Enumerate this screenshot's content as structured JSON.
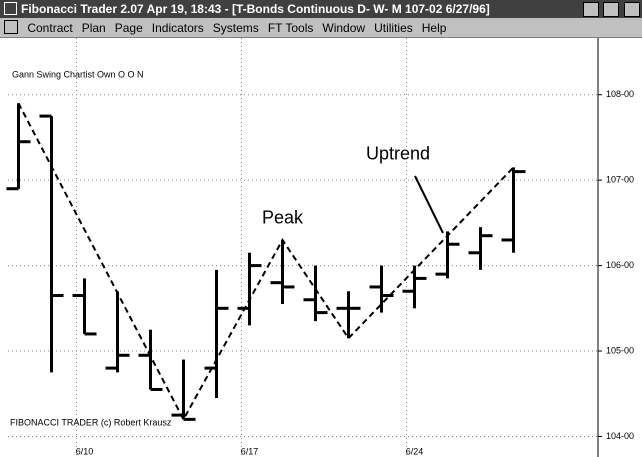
{
  "window": {
    "title": "Fibonacci Trader 2.07 Apr 19,  18:43 - [T-Bonds Continuous D- W- M  107-02 6/27/96]",
    "menu": [
      "Contract",
      "Plan",
      "Page",
      "Indicators",
      "Systems",
      "FT Tools",
      "Window",
      "Utilities",
      "Help"
    ]
  },
  "chart_data": {
    "type": "ohlc",
    "title": "Gann Swing Chartist Own O O N",
    "footer": "FIBONACCI TRADER (c) Robert Krausz",
    "categories": [
      null,
      null,
      "6/10",
      null,
      null,
      null,
      null,
      "6/17",
      null,
      null,
      null,
      null,
      "6/24",
      null,
      null,
      null
    ],
    "open": [
      106.9,
      107.75,
      105.65,
      104.8,
      104.95,
      104.25,
      104.8,
      105.5,
      105.8,
      105.6,
      105.5,
      105.75,
      105.7,
      105.9,
      106.15,
      106.3
    ],
    "high": [
      107.9,
      107.75,
      105.85,
      105.7,
      105.25,
      104.9,
      105.95,
      106.15,
      106.3,
      106.0,
      105.7,
      106.0,
      106.0,
      106.4,
      106.45,
      107.15
    ],
    "low": [
      106.9,
      104.75,
      105.2,
      104.75,
      104.55,
      104.2,
      104.45,
      105.3,
      105.55,
      105.35,
      105.15,
      105.45,
      105.5,
      105.85,
      105.95,
      106.15
    ],
    "close": [
      107.45,
      105.65,
      105.2,
      104.95,
      104.55,
      104.2,
      105.5,
      106.0,
      105.75,
      105.45,
      105.5,
      105.65,
      105.85,
      106.25,
      106.35,
      107.1
    ],
    "swing": {
      "x": [
        0,
        5,
        8,
        10,
        15
      ],
      "values": [
        107.9,
        104.2,
        106.3,
        105.15,
        107.15
      ]
    },
    "annotations": [
      {
        "text": "Peak",
        "x": 8,
        "y": 106.55
      },
      {
        "text": "Uptrend",
        "x": 11.5,
        "y": 107.3
      }
    ],
    "ylim": [
      103.9,
      108.43
    ],
    "yticks": [
      {
        "value": 104,
        "label": "104-00"
      },
      {
        "value": 105,
        "label": "105-00"
      },
      {
        "value": 106,
        "label": "106-00"
      },
      {
        "value": 107,
        "label": "107-00"
      },
      {
        "value": 108,
        "label": "108-00"
      }
    ],
    "grid": true
  }
}
